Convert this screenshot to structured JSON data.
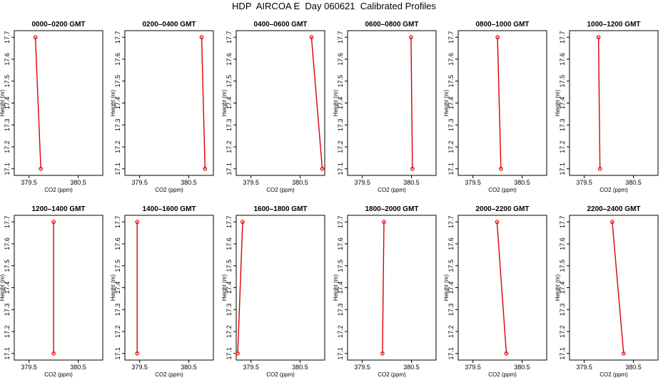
{
  "title": "HDP  AIRCOA E  Day 060621  Calibrated Profiles",
  "colors": {
    "line": "#dd0000",
    "axis": "#000000",
    "background": "#ffffff"
  },
  "chart_data": [
    {
      "type": "line",
      "title": "0000–0200 GMT",
      "xlabel": "CO2 (ppm)",
      "ylabel": "Height (m)",
      "xlim": [
        379.2,
        381.0
      ],
      "ylim": [
        17.07,
        17.73
      ],
      "xticks": [
        "379.5",
        "380.5"
      ],
      "yticks": [
        "17.1",
        "17.2",
        "17.3",
        "17.4",
        "17.5",
        "17.6",
        "17.7"
      ],
      "series": [
        {
          "x": [
            379.74,
            379.63
          ],
          "y": [
            17.1,
            17.7
          ]
        }
      ]
    },
    {
      "type": "line",
      "title": "0200–0400 GMT",
      "xlabel": "CO2 (ppm)",
      "ylabel": "Height (m)",
      "xlim": [
        379.2,
        381.0
      ],
      "ylim": [
        17.07,
        17.73
      ],
      "xticks": [
        "379.5",
        "380.5"
      ],
      "yticks": [
        "17.1",
        "17.2",
        "17.3",
        "17.4",
        "17.5",
        "17.6",
        "17.7"
      ],
      "series": [
        {
          "x": [
            380.83,
            380.76
          ],
          "y": [
            17.1,
            17.7
          ]
        }
      ]
    },
    {
      "type": "line",
      "title": "0400–0600 GMT",
      "xlabel": "CO2 (ppm)",
      "ylabel": "Height (m)",
      "xlim": [
        379.2,
        381.0
      ],
      "ylim": [
        17.07,
        17.73
      ],
      "xticks": [
        "379.5",
        "380.5"
      ],
      "yticks": [
        "17.1",
        "17.2",
        "17.3",
        "17.4",
        "17.5",
        "17.6",
        "17.7"
      ],
      "series": [
        {
          "x": [
            380.95,
            380.73
          ],
          "y": [
            17.1,
            17.7
          ]
        }
      ]
    },
    {
      "type": "line",
      "title": "0600–0800 GMT",
      "xlabel": "CO2 (ppm)",
      "ylabel": "Height (m)",
      "xlim": [
        379.2,
        381.0
      ],
      "ylim": [
        17.07,
        17.73
      ],
      "xticks": [
        "379.5",
        "380.5"
      ],
      "yticks": [
        "17.1",
        "17.2",
        "17.3",
        "17.4",
        "17.5",
        "17.6",
        "17.7"
      ],
      "series": [
        {
          "x": [
            380.52,
            380.49
          ],
          "y": [
            17.1,
            17.7
          ]
        }
      ]
    },
    {
      "type": "line",
      "title": "0800–1000 GMT",
      "xlabel": "CO2 (ppm)",
      "ylabel": "Height (m)",
      "xlim": [
        379.2,
        381.0
      ],
      "ylim": [
        17.07,
        17.73
      ],
      "xticks": [
        "379.5",
        "380.5"
      ],
      "yticks": [
        "17.1",
        "17.2",
        "17.3",
        "17.4",
        "17.5",
        "17.6",
        "17.7"
      ],
      "series": [
        {
          "x": [
            380.07,
            380.0
          ],
          "y": [
            17.1,
            17.7
          ]
        }
      ]
    },
    {
      "type": "line",
      "title": "1000–1200 GMT",
      "xlabel": "CO2 (ppm)",
      "ylabel": "Height (m)",
      "xlim": [
        379.2,
        381.0
      ],
      "ylim": [
        17.07,
        17.73
      ],
      "xticks": [
        "379.5",
        "380.5"
      ],
      "yticks": [
        "17.1",
        "17.2",
        "17.3",
        "17.4",
        "17.5",
        "17.6",
        "17.7"
      ],
      "series": [
        {
          "x": [
            379.82,
            379.79
          ],
          "y": [
            17.1,
            17.7
          ]
        }
      ]
    },
    {
      "type": "line",
      "title": "1200–1400 GMT",
      "xlabel": "CO2 (ppm)",
      "ylabel": "Height (m)",
      "xlim": [
        379.2,
        381.0
      ],
      "ylim": [
        17.07,
        17.73
      ],
      "xticks": [
        "379.5",
        "380.5"
      ],
      "yticks": [
        "17.1",
        "17.2",
        "17.3",
        "17.4",
        "17.5",
        "17.6",
        "17.7"
      ],
      "series": [
        {
          "x": [
            380.0,
            380.0
          ],
          "y": [
            17.1,
            17.7
          ]
        }
      ]
    },
    {
      "type": "line",
      "title": "1400–1600 GMT",
      "xlabel": "CO2 (ppm)",
      "ylabel": "Height (m)",
      "xlim": [
        379.2,
        381.0
      ],
      "ylim": [
        17.07,
        17.73
      ],
      "xticks": [
        "379.5",
        "380.5"
      ],
      "yticks": [
        "17.1",
        "17.2",
        "17.3",
        "17.4",
        "17.5",
        "17.6",
        "17.7"
      ],
      "series": [
        {
          "x": [
            379.45,
            379.45
          ],
          "y": [
            17.1,
            17.7
          ]
        }
      ]
    },
    {
      "type": "line",
      "title": "1600–1800 GMT",
      "xlabel": "CO2 (ppm)",
      "ylabel": "Height (m)",
      "xlim": [
        379.2,
        381.0
      ],
      "ylim": [
        17.07,
        17.73
      ],
      "xticks": [
        "379.5",
        "380.5"
      ],
      "yticks": [
        "17.1",
        "17.2",
        "17.3",
        "17.4",
        "17.5",
        "17.6",
        "17.7"
      ],
      "series": [
        {
          "x": [
            379.23,
            379.33
          ],
          "y": [
            17.1,
            17.7
          ]
        }
      ]
    },
    {
      "type": "line",
      "title": "1800–2000 GMT",
      "xlabel": "CO2 (ppm)",
      "ylabel": "Height (m)",
      "xlim": [
        379.2,
        381.0
      ],
      "ylim": [
        17.07,
        17.73
      ],
      "xticks": [
        "379.5",
        "380.5"
      ],
      "yticks": [
        "17.1",
        "17.2",
        "17.3",
        "17.4",
        "17.5",
        "17.6",
        "17.7"
      ],
      "series": [
        {
          "x": [
            379.91,
            379.94
          ],
          "y": [
            17.1,
            17.7
          ]
        }
      ]
    },
    {
      "type": "line",
      "title": "2000–2200 GMT",
      "xlabel": "CO2 (ppm)",
      "ylabel": "Height (m)",
      "xlim": [
        379.2,
        381.0
      ],
      "ylim": [
        17.07,
        17.73
      ],
      "xticks": [
        "379.5",
        "380.5"
      ],
      "yticks": [
        "17.1",
        "17.2",
        "17.3",
        "17.4",
        "17.5",
        "17.6",
        "17.7"
      ],
      "series": [
        {
          "x": [
            380.18,
            379.99
          ],
          "y": [
            17.1,
            17.7
          ]
        }
      ]
    },
    {
      "type": "line",
      "title": "2200–2400 GMT",
      "xlabel": "CO2 (ppm)",
      "ylabel": "Height (m)",
      "xlim": [
        379.2,
        381.0
      ],
      "ylim": [
        17.07,
        17.73
      ],
      "xticks": [
        "379.5",
        "380.5"
      ],
      "yticks": [
        "17.1",
        "17.2",
        "17.3",
        "17.4",
        "17.5",
        "17.6",
        "17.7"
      ],
      "series": [
        {
          "x": [
            380.3,
            380.07
          ],
          "y": [
            17.1,
            17.7
          ]
        }
      ]
    }
  ]
}
